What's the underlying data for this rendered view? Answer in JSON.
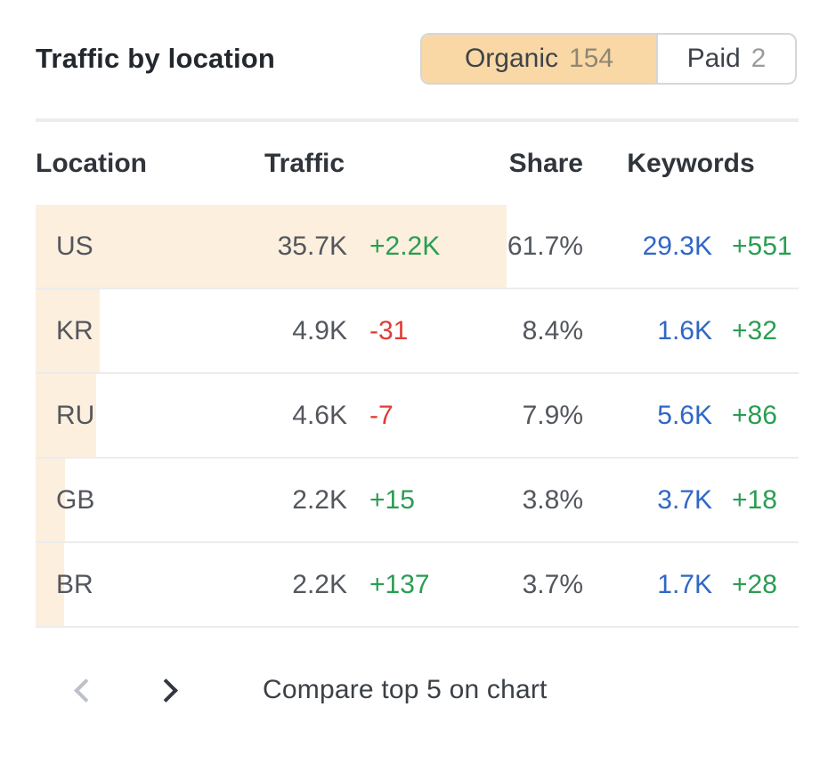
{
  "widget": {
    "title": "Traffic by location"
  },
  "toggle": {
    "organic": {
      "label": "Organic",
      "count": "154",
      "selected": true
    },
    "paid": {
      "label": "Paid",
      "count": "2",
      "selected": false
    }
  },
  "table": {
    "columns": {
      "location": "Location",
      "traffic": "Traffic",
      "share": "Share",
      "keywords": "Keywords"
    },
    "rows": [
      {
        "location": "US",
        "traffic": "35.7K",
        "traffic_change": "+2.2K",
        "share": "61.7%",
        "share_pct": 61.7,
        "keywords": "29.3K",
        "keywords_change": "+551"
      },
      {
        "location": "KR",
        "traffic": "4.9K",
        "traffic_change": "-31",
        "share": "8.4%",
        "share_pct": 8.4,
        "keywords": "1.6K",
        "keywords_change": "+32"
      },
      {
        "location": "RU",
        "traffic": "4.6K",
        "traffic_change": "-7",
        "share": "7.9%",
        "share_pct": 7.9,
        "keywords": "5.6K",
        "keywords_change": "+86"
      },
      {
        "location": "GB",
        "traffic": "2.2K",
        "traffic_change": "+15",
        "share": "3.8%",
        "share_pct": 3.8,
        "keywords": "3.7K",
        "keywords_change": "+18"
      },
      {
        "location": "BR",
        "traffic": "2.2K",
        "traffic_change": "+137",
        "share": "3.7%",
        "share_pct": 3.7,
        "keywords": "1.7K",
        "keywords_change": "+28"
      }
    ]
  },
  "footer": {
    "prev_icon": "chevron-left",
    "next_icon": "chevron-right",
    "compare_label": "Compare top 5 on chart"
  },
  "colors": {
    "accent": "#f9d8a5",
    "row_bar": "#fcefde",
    "positive": "#2a9d52",
    "negative": "#e13c34",
    "link_blue": "#2f67c6"
  }
}
